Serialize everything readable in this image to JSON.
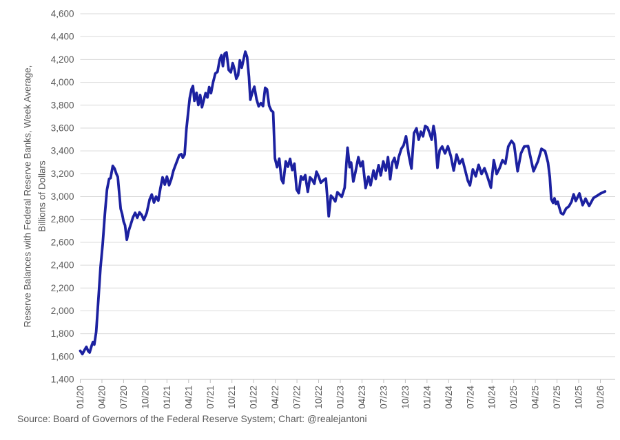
{
  "axis": {
    "y_title_line1": "Reserve Balances with Federal Reserve Banks, Week Average,",
    "y_title_line2": "Billions of Dollars"
  },
  "footer": {
    "source": "Source: Board of Governors of the Federal Reserve System; Chart: @realejantoni"
  },
  "colors": {
    "line": "#1c21a0",
    "gridline": "#d9d9d9",
    "axis_line": "#bfbfbf",
    "axis_text": "#595959"
  },
  "chart_data": {
    "type": "line",
    "title": "",
    "xlabel": "",
    "ylabel": "Reserve Balances with Federal Reserve Banks, Week Average, Billions of Dollars",
    "x_unit": "months since 2020-01 (weekly series)",
    "ylim": [
      1400,
      4600
    ],
    "ytick_step": 200,
    "grid": "horizontal",
    "legend": "none",
    "y_tick_labels": [
      "1,400",
      "1,600",
      "1,800",
      "2,000",
      "2,200",
      "2,400",
      "2,600",
      "2,800",
      "3,000",
      "3,200",
      "3,400",
      "3,600",
      "3,800",
      "4,000",
      "4,200",
      "4,400",
      "4,600"
    ],
    "x_tick_labels": [
      "01/20",
      "04/20",
      "07/20",
      "10/20",
      "01/21",
      "04/21",
      "07/21",
      "10/21",
      "01/22",
      "04/22",
      "07/22",
      "10/22",
      "01/23",
      "04/23",
      "07/23",
      "10/23",
      "01/24",
      "04/24",
      "07/24",
      "10/24",
      "01/25",
      "04/25",
      "07/25",
      "10/25",
      "01/26"
    ],
    "x_tick_months": [
      0,
      3,
      6,
      9,
      12,
      15,
      18,
      21,
      24,
      27,
      30,
      33,
      36,
      39,
      42,
      45,
      48,
      51,
      54,
      57,
      60,
      63,
      66,
      69,
      72
    ],
    "series": [
      {
        "name": "Reserve Balances with Federal Reserve Banks, Week Average ($B)",
        "color": "#1c21a0",
        "points": [
          [
            0,
            1650
          ],
          [
            0.3,
            1622
          ],
          [
            0.6,
            1658
          ],
          [
            0.85,
            1685
          ],
          [
            1.1,
            1648
          ],
          [
            1.3,
            1635
          ],
          [
            1.6,
            1700
          ],
          [
            1.75,
            1727
          ],
          [
            1.95,
            1705
          ],
          [
            2.2,
            1815
          ],
          [
            2.5,
            2090
          ],
          [
            2.8,
            2380
          ],
          [
            3.1,
            2580
          ],
          [
            3.4,
            2845
          ],
          [
            3.7,
            3060
          ],
          [
            4,
            3155
          ],
          [
            4.2,
            3162
          ],
          [
            4.5,
            3268
          ],
          [
            4.75,
            3245
          ],
          [
            5,
            3200
          ],
          [
            5.2,
            3172
          ],
          [
            5.35,
            3062
          ],
          [
            5.6,
            2892
          ],
          [
            5.8,
            2848
          ],
          [
            6,
            2782
          ],
          [
            6.2,
            2748
          ],
          [
            6.45,
            2622
          ],
          [
            6.7,
            2700
          ],
          [
            7,
            2758
          ],
          [
            7.3,
            2818
          ],
          [
            7.6,
            2858
          ],
          [
            7.9,
            2815
          ],
          [
            8.2,
            2862
          ],
          [
            8.5,
            2840
          ],
          [
            8.8,
            2796
          ],
          [
            9.2,
            2858
          ],
          [
            9.6,
            2975
          ],
          [
            9.9,
            3018
          ],
          [
            10.2,
            2948
          ],
          [
            10.5,
            3000
          ],
          [
            10.8,
            2965
          ],
          [
            11.1,
            3075
          ],
          [
            11.4,
            3168
          ],
          [
            11.7,
            3105
          ],
          [
            12,
            3175
          ],
          [
            12.3,
            3100
          ],
          [
            12.6,
            3152
          ],
          [
            12.9,
            3228
          ],
          [
            13.3,
            3295
          ],
          [
            13.7,
            3362
          ],
          [
            14,
            3372
          ],
          [
            14.2,
            3340
          ],
          [
            14.45,
            3368
          ],
          [
            14.7,
            3590
          ],
          [
            14.95,
            3745
          ],
          [
            15.15,
            3862
          ],
          [
            15.4,
            3940
          ],
          [
            15.6,
            3968
          ],
          [
            15.8,
            3838
          ],
          [
            16.1,
            3908
          ],
          [
            16.35,
            3802
          ],
          [
            16.6,
            3888
          ],
          [
            16.85,
            3782
          ],
          [
            17.1,
            3845
          ],
          [
            17.35,
            3905
          ],
          [
            17.6,
            3868
          ],
          [
            17.85,
            3958
          ],
          [
            18.1,
            3905
          ],
          [
            18.4,
            4002
          ],
          [
            18.7,
            4078
          ],
          [
            19,
            4092
          ],
          [
            19.3,
            4198
          ],
          [
            19.55,
            4238
          ],
          [
            19.75,
            4142
          ],
          [
            20,
            4252
          ],
          [
            20.25,
            4262
          ],
          [
            20.55,
            4108
          ],
          [
            20.85,
            4088
          ],
          [
            21.1,
            4168
          ],
          [
            21.35,
            4115
          ],
          [
            21.6,
            4032
          ],
          [
            21.85,
            4062
          ],
          [
            22.1,
            4192
          ],
          [
            22.35,
            4128
          ],
          [
            22.6,
            4198
          ],
          [
            22.85,
            4268
          ],
          [
            23.1,
            4222
          ],
          [
            23.35,
            4048
          ],
          [
            23.55,
            3848
          ],
          [
            23.85,
            3918
          ],
          [
            24.1,
            3962
          ],
          [
            24.4,
            3852
          ],
          [
            24.7,
            3790
          ],
          [
            25,
            3818
          ],
          [
            25.3,
            3792
          ],
          [
            25.6,
            3952
          ],
          [
            25.85,
            3938
          ],
          [
            26.15,
            3795
          ],
          [
            26.45,
            3752
          ],
          [
            26.7,
            3740
          ],
          [
            26.95,
            3335
          ],
          [
            27.25,
            3258
          ],
          [
            27.55,
            3332
          ],
          [
            27.85,
            3152
          ],
          [
            28.1,
            3118
          ],
          [
            28.45,
            3308
          ],
          [
            28.75,
            3262
          ],
          [
            29.05,
            3330
          ],
          [
            29.35,
            3232
          ],
          [
            29.65,
            3288
          ],
          [
            29.95,
            3062
          ],
          [
            30.25,
            3030
          ],
          [
            30.55,
            3178
          ],
          [
            30.85,
            3148
          ],
          [
            31.15,
            3188
          ],
          [
            31.5,
            3042
          ],
          [
            31.8,
            3168
          ],
          [
            32.1,
            3148
          ],
          [
            32.4,
            3112
          ],
          [
            32.7,
            3218
          ],
          [
            33,
            3178
          ],
          [
            33.3,
            3122
          ],
          [
            33.7,
            3145
          ],
          [
            34,
            3158
          ],
          [
            34.4,
            2828
          ],
          [
            34.7,
            3008
          ],
          [
            35,
            2988
          ],
          [
            35.3,
            2958
          ],
          [
            35.6,
            3038
          ],
          [
            35.9,
            3018
          ],
          [
            36.2,
            2998
          ],
          [
            36.6,
            3078
          ],
          [
            37,
            3428
          ],
          [
            37.3,
            3258
          ],
          [
            37.5,
            3298
          ],
          [
            37.8,
            3132
          ],
          [
            38.1,
            3215
          ],
          [
            38.5,
            3345
          ],
          [
            38.8,
            3265
          ],
          [
            39.1,
            3308
          ],
          [
            39.5,
            3075
          ],
          [
            39.9,
            3175
          ],
          [
            40.2,
            3100
          ],
          [
            40.6,
            3228
          ],
          [
            40.9,
            3155
          ],
          [
            41.3,
            3275
          ],
          [
            41.6,
            3185
          ],
          [
            41.95,
            3308
          ],
          [
            42.3,
            3228
          ],
          [
            42.6,
            3345
          ],
          [
            42.9,
            3152
          ],
          [
            43.2,
            3298
          ],
          [
            43.5,
            3338
          ],
          [
            43.8,
            3252
          ],
          [
            44.1,
            3348
          ],
          [
            44.45,
            3418
          ],
          [
            44.75,
            3448
          ],
          [
            45.1,
            3528
          ],
          [
            45.5,
            3355
          ],
          [
            45.85,
            3245
          ],
          [
            46.2,
            3555
          ],
          [
            46.55,
            3598
          ],
          [
            46.85,
            3498
          ],
          [
            47.15,
            3568
          ],
          [
            47.45,
            3528
          ],
          [
            47.75,
            3618
          ],
          [
            48.05,
            3605
          ],
          [
            48.35,
            3558
          ],
          [
            48.65,
            3498
          ],
          [
            48.9,
            3618
          ],
          [
            49.1,
            3548
          ],
          [
            49.45,
            3252
          ],
          [
            49.75,
            3405
          ],
          [
            50.1,
            3438
          ],
          [
            50.5,
            3378
          ],
          [
            50.9,
            3440
          ],
          [
            51.3,
            3355
          ],
          [
            51.7,
            3228
          ],
          [
            52.1,
            3368
          ],
          [
            52.5,
            3288
          ],
          [
            52.9,
            3328
          ],
          [
            53.3,
            3228
          ],
          [
            53.65,
            3140
          ],
          [
            53.95,
            3098
          ],
          [
            54.35,
            3238
          ],
          [
            54.75,
            3178
          ],
          [
            55.15,
            3278
          ],
          [
            55.55,
            3198
          ],
          [
            55.95,
            3248
          ],
          [
            56.35,
            3178
          ],
          [
            56.85,
            3078
          ],
          [
            57.25,
            3318
          ],
          [
            57.65,
            3198
          ],
          [
            58.05,
            3248
          ],
          [
            58.45,
            3318
          ],
          [
            58.85,
            3288
          ],
          [
            59.25,
            3438
          ],
          [
            59.7,
            3488
          ],
          [
            60.05,
            3458
          ],
          [
            60.55,
            3222
          ],
          [
            61,
            3378
          ],
          [
            61.45,
            3438
          ],
          [
            62,
            3442
          ],
          [
            62.75,
            3222
          ],
          [
            63.35,
            3308
          ],
          [
            63.85,
            3418
          ],
          [
            64.35,
            3398
          ],
          [
            64.75,
            3298
          ],
          [
            65,
            3172
          ],
          [
            65.2,
            2978
          ],
          [
            65.45,
            2945
          ],
          [
            65.65,
            2985
          ],
          [
            65.85,
            2935
          ],
          [
            66.1,
            2955
          ],
          [
            66.3,
            2908
          ],
          [
            66.55,
            2855
          ],
          [
            66.85,
            2845
          ],
          [
            67.25,
            2895
          ],
          [
            67.65,
            2915
          ],
          [
            68,
            2955
          ],
          [
            68.3,
            3020
          ],
          [
            68.6,
            2962
          ],
          [
            69.1,
            3028
          ],
          [
            69.55,
            2925
          ],
          [
            69.95,
            2982
          ],
          [
            70.45,
            2918
          ],
          [
            71.05,
            2988
          ],
          [
            71.55,
            3008
          ],
          [
            72.05,
            3028
          ],
          [
            72.65,
            3045
          ]
        ]
      }
    ]
  }
}
